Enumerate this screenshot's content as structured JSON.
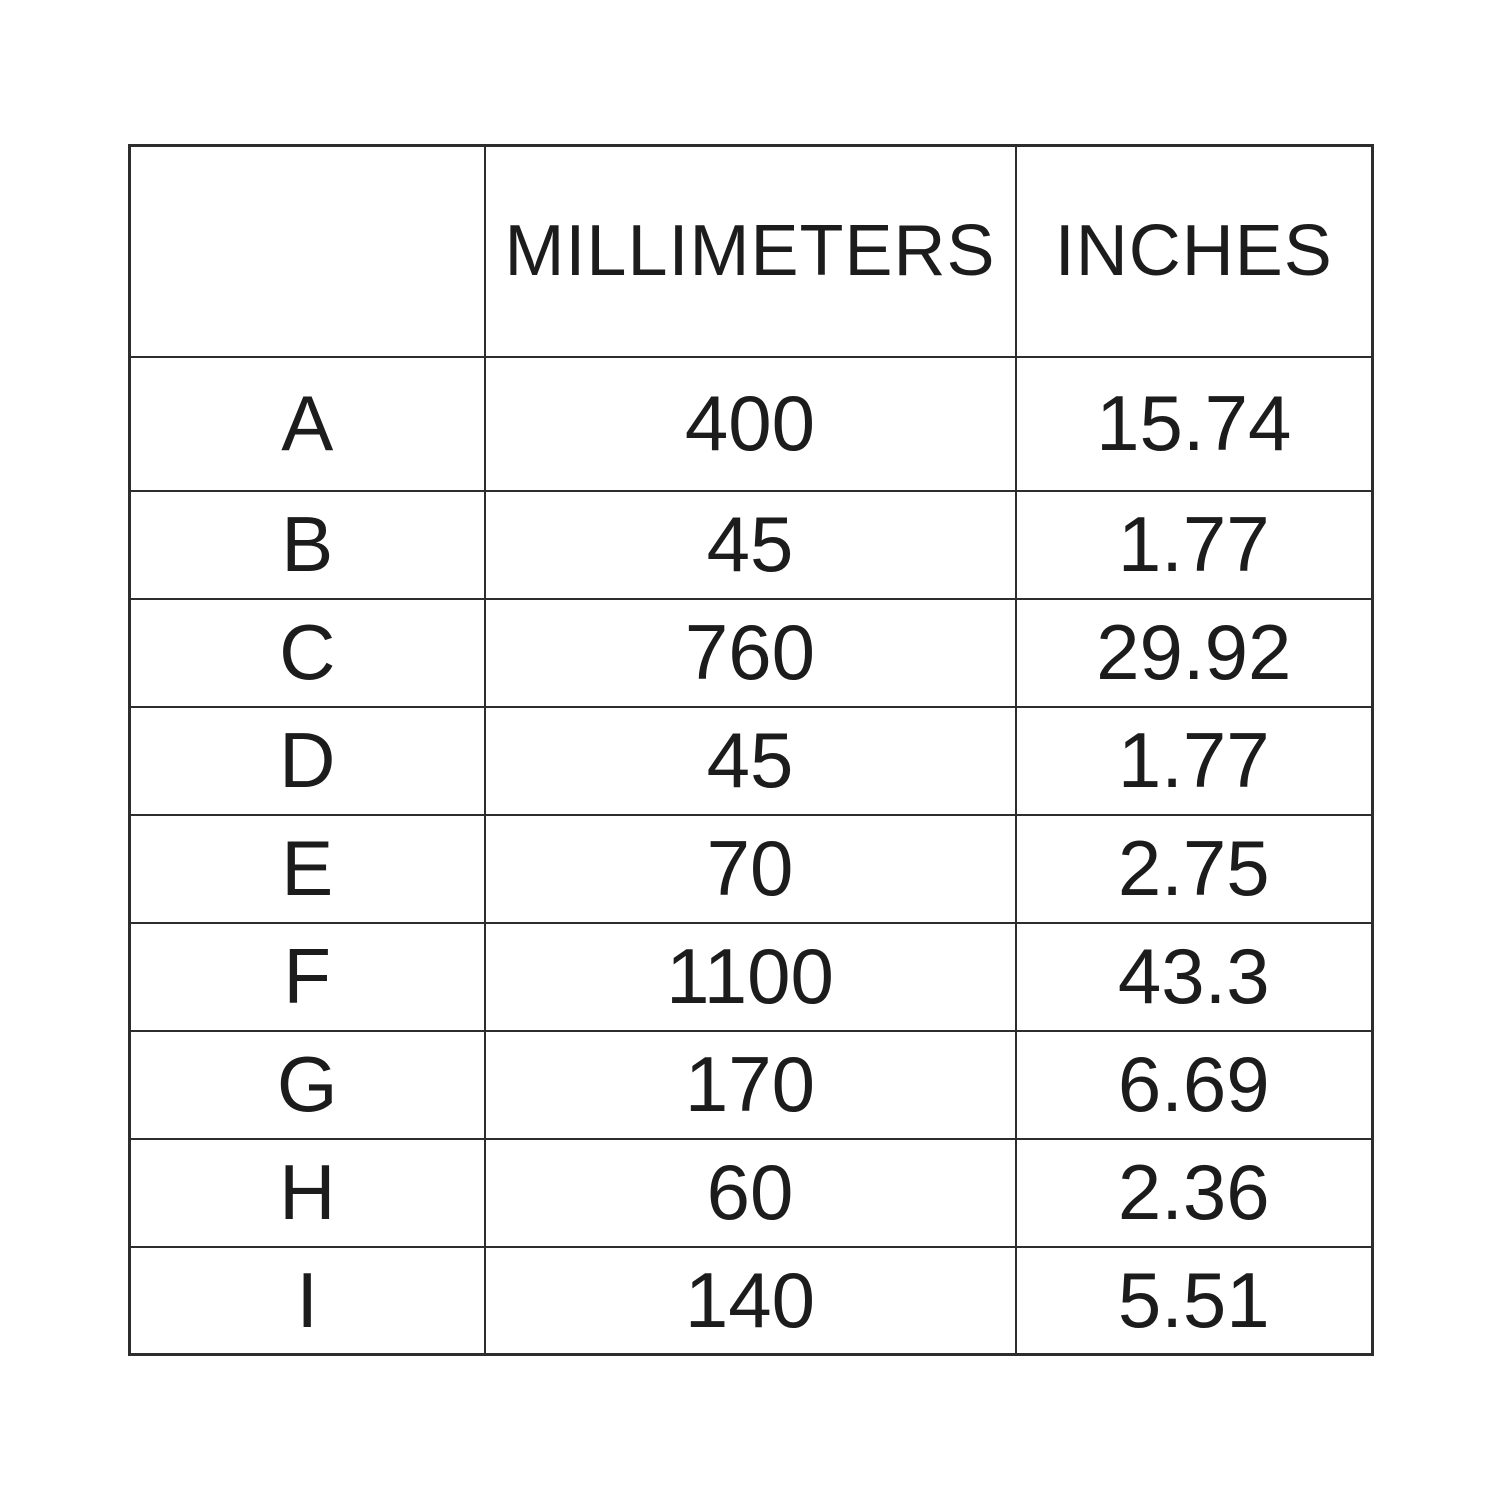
{
  "colors": {
    "background": "#ffffff",
    "text": "#1c1c1c",
    "grid_line": "#2d2d2d"
  },
  "table": {
    "headers": [
      "",
      "MILLIMETERS",
      "INCHES"
    ],
    "rows": [
      {
        "label": "A",
        "millimeters": "400",
        "inches": "15.74"
      },
      {
        "label": "B",
        "millimeters": "45",
        "inches": "1.77"
      },
      {
        "label": "C",
        "millimeters": "760",
        "inches": "29.92"
      },
      {
        "label": "D",
        "millimeters": "45",
        "inches": "1.77"
      },
      {
        "label": "E",
        "millimeters": "70",
        "inches": "2.75"
      },
      {
        "label": "F",
        "millimeters": "1100",
        "inches": "43.3"
      },
      {
        "label": "G",
        "millimeters": "170",
        "inches": "6.69"
      },
      {
        "label": "H",
        "millimeters": "60",
        "inches": "2.36"
      },
      {
        "label": "I",
        "millimeters": "140",
        "inches": "5.51"
      }
    ]
  },
  "chart_data": {
    "type": "table",
    "title": "",
    "columns": [
      "",
      "MILLIMETERS",
      "INCHES"
    ],
    "rows": [
      [
        "A",
        400,
        15.74
      ],
      [
        "B",
        45,
        1.77
      ],
      [
        "C",
        760,
        29.92
      ],
      [
        "D",
        45,
        1.77
      ],
      [
        "E",
        70,
        2.75
      ],
      [
        "F",
        1100,
        43.3
      ],
      [
        "G",
        170,
        6.69
      ],
      [
        "H",
        60,
        2.36
      ],
      [
        "I",
        140,
        5.51
      ]
    ]
  }
}
